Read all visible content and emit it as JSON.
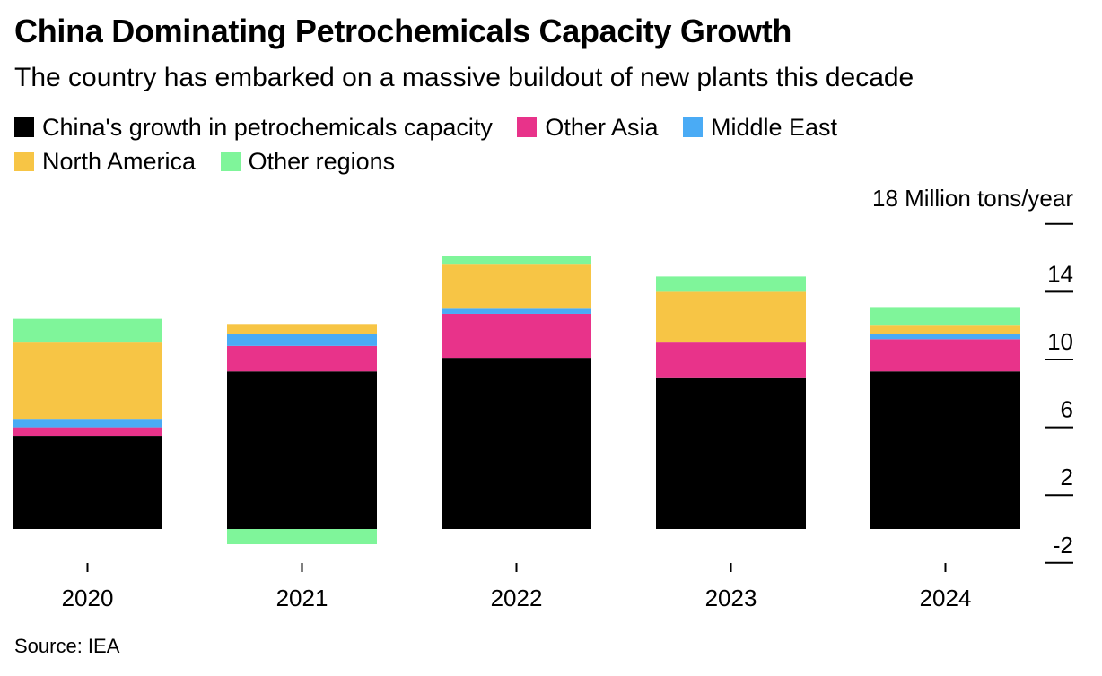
{
  "title": "China Dominating Petrochemicals Capacity Growth",
  "subtitle": "The country has embarked on a massive buildout of new plants this decade",
  "source": "Source: IEA",
  "colors": {
    "china": "#000000",
    "other_asia": "#e8338a",
    "middle_east": "#4aabf5",
    "north_america": "#f7c545",
    "other_regions": "#7ff59a"
  },
  "legend": [
    {
      "label": "China's growth in petrochemicals capacity",
      "color": "#000000"
    },
    {
      "label": "Other Asia",
      "color": "#e8338a"
    },
    {
      "label": "Middle East",
      "color": "#4aabf5"
    },
    {
      "label": "North America",
      "color": "#f7c545"
    },
    {
      "label": "Other regions",
      "color": "#7ff59a"
    }
  ],
  "chart_data": {
    "type": "bar",
    "stacked": true,
    "unit_label": "18 Million tons/year",
    "categories": [
      "2020",
      "2021",
      "2022",
      "2023",
      "2024"
    ],
    "series": [
      {
        "name": "China's growth in petrochemicals capacity",
        "color": "#000000",
        "values": [
          5.5,
          9.3,
          10.1,
          8.9,
          9.3
        ]
      },
      {
        "name": "Other Asia",
        "color": "#e8338a",
        "values": [
          0.5,
          1.5,
          2.6,
          2.1,
          1.9
        ]
      },
      {
        "name": "Middle East",
        "color": "#4aabf5",
        "values": [
          0.5,
          0.7,
          0.3,
          0.0,
          0.3
        ]
      },
      {
        "name": "North America",
        "color": "#f7c545",
        "values": [
          4.5,
          0.6,
          2.6,
          3.0,
          0.5
        ]
      },
      {
        "name": "Other regions",
        "color": "#7ff59a",
        "values": [
          1.4,
          -0.9,
          0.5,
          0.9,
          1.1
        ]
      }
    ],
    "yticks": [
      -2,
      2,
      6,
      10,
      14,
      18
    ],
    "ylim": [
      -2,
      18
    ],
    "grid": false,
    "legend_position": "top-left"
  }
}
